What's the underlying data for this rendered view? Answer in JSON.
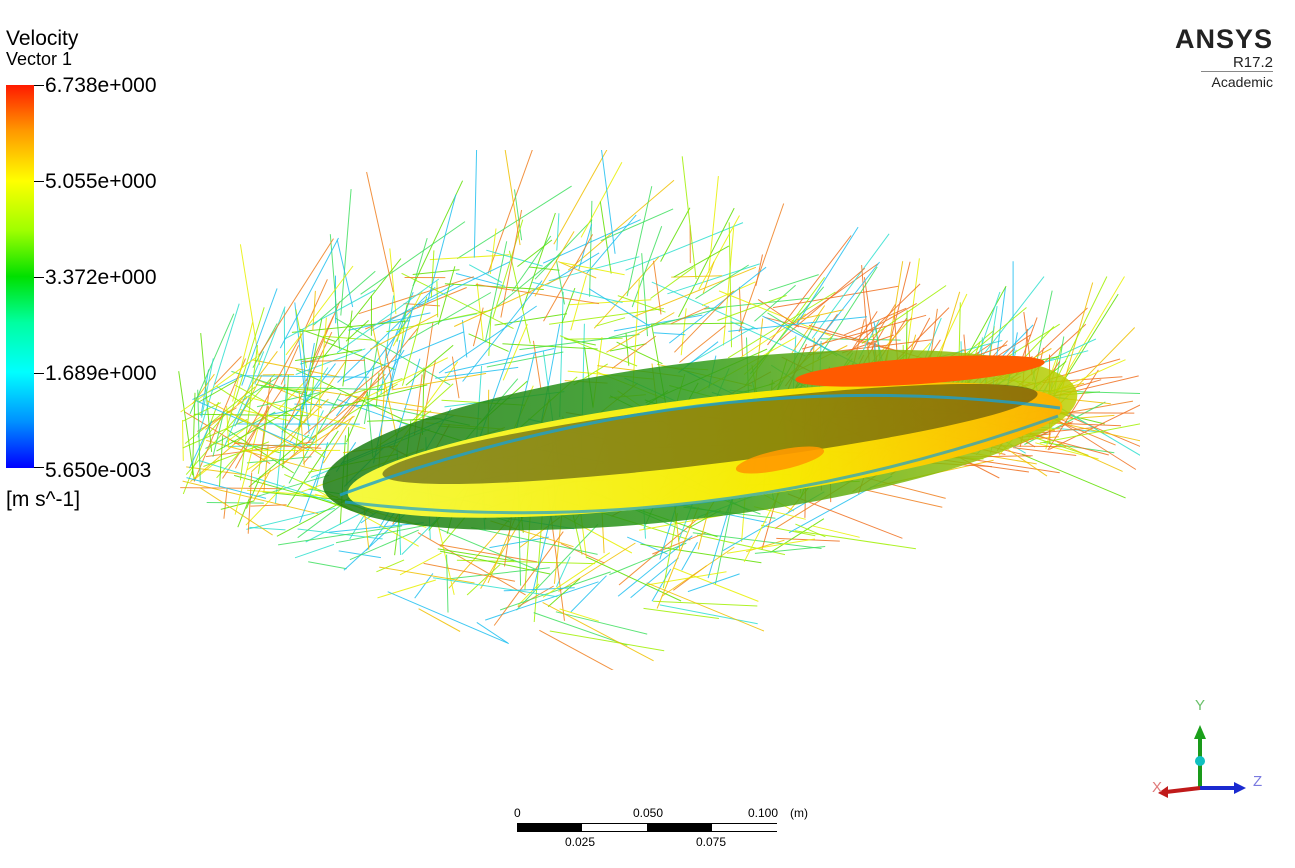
{
  "legend": {
    "title": "Velocity",
    "subtitle": "Vector 1",
    "ticks": [
      "6.738e+000",
      "5.055e+000",
      "3.372e+000",
      "1.689e+000",
      "5.650e-003"
    ],
    "unit": "[m s^-1]"
  },
  "logo": {
    "title": "ANSYS",
    "version": "R17.2",
    "edition": "Academic"
  },
  "scale": {
    "top_labels": [
      "0",
      "0.050",
      "0.100"
    ],
    "unit": "(m)",
    "bottom_labels": [
      "0.025",
      "0.075"
    ]
  },
  "triad": {
    "x": "X",
    "y": "Y",
    "z": "Z"
  }
}
